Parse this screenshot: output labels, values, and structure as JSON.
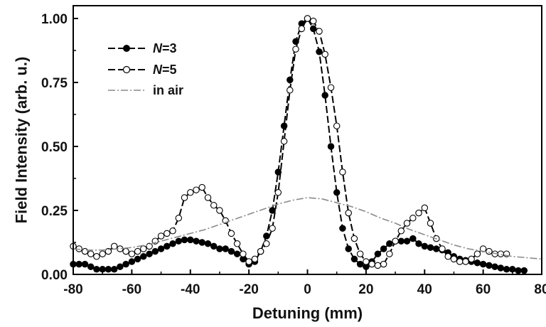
{
  "chart_data": {
    "type": "line",
    "title": "",
    "xlabel": "Detuning (mm)",
    "ylabel": "Field Intensity (arb. u.)",
    "xlim": [
      -80,
      80
    ],
    "ylim": [
      0,
      1.05
    ],
    "xticks": [
      -80,
      -60,
      -40,
      -20,
      0,
      20,
      40,
      60,
      80
    ],
    "yticks": [
      0.0,
      0.25,
      0.5,
      0.75,
      1.0
    ],
    "xtick_labels": [
      "-80",
      "-60",
      "-40",
      "-20",
      "0",
      "20",
      "40",
      "60",
      "80"
    ],
    "ytick_labels": [
      "0.00",
      "0.25",
      "0.50",
      "0.75",
      "1.00"
    ],
    "grid": false,
    "legend_position": "top-left",
    "series": [
      {
        "name_prefix": "N",
        "name_suffix": "=3",
        "marker": "filled-circle",
        "color": "#000000",
        "x": [
          -80,
          -78,
          -76,
          -74,
          -72,
          -70,
          -68,
          -66,
          -64,
          -62,
          -60,
          -58,
          -56,
          -54,
          -52,
          -50,
          -48,
          -46,
          -44,
          -42,
          -40,
          -38,
          -36,
          -34,
          -32,
          -30,
          -28,
          -26,
          -24,
          -22,
          -20,
          -18,
          -16,
          -14,
          -12,
          -10,
          -8,
          -6,
          -4,
          -2,
          0,
          2,
          4,
          6,
          8,
          10,
          12,
          14,
          16,
          18,
          20,
          22,
          24,
          26,
          28,
          30,
          32,
          34,
          36,
          38,
          40,
          42,
          44,
          46,
          48,
          50,
          52,
          54,
          56,
          58,
          60,
          62,
          64,
          66,
          68,
          70,
          72,
          74
        ],
        "y": [
          0.04,
          0.04,
          0.04,
          0.03,
          0.02,
          0.02,
          0.02,
          0.02,
          0.03,
          0.04,
          0.05,
          0.06,
          0.07,
          0.08,
          0.09,
          0.1,
          0.11,
          0.12,
          0.13,
          0.135,
          0.135,
          0.13,
          0.125,
          0.12,
          0.11,
          0.1,
          0.1,
          0.09,
          0.08,
          0.06,
          0.04,
          0.05,
          0.09,
          0.15,
          0.25,
          0.4,
          0.58,
          0.76,
          0.91,
          0.98,
          1.0,
          0.96,
          0.87,
          0.7,
          0.5,
          0.32,
          0.18,
          0.1,
          0.06,
          0.04,
          0.03,
          0.05,
          0.08,
          0.1,
          0.12,
          0.13,
          0.13,
          0.13,
          0.14,
          0.12,
          0.11,
          0.105,
          0.1,
          0.095,
          0.085,
          0.07,
          0.06,
          0.055,
          0.05,
          0.045,
          0.04,
          0.035,
          0.03,
          0.025,
          0.02,
          0.02,
          0.015,
          0.015
        ]
      },
      {
        "name_prefix": "N",
        "name_suffix": "=5",
        "marker": "open-circle",
        "color": "#000000",
        "x": [
          -80,
          -78,
          -76,
          -74,
          -72,
          -70,
          -68,
          -66,
          -64,
          -62,
          -60,
          -58,
          -56,
          -54,
          -52,
          -50,
          -48,
          -46,
          -44,
          -42,
          -40,
          -38,
          -36,
          -34,
          -32,
          -30,
          -28,
          -26,
          -24,
          -22,
          -20,
          -18,
          -16,
          -14,
          -12,
          -10,
          -8,
          -6,
          -4,
          -2,
          0,
          2,
          4,
          6,
          8,
          10,
          12,
          14,
          16,
          18,
          20,
          22,
          24,
          26,
          28,
          30,
          32,
          34,
          36,
          38,
          40,
          42,
          44,
          46,
          48,
          50,
          52,
          54,
          56,
          58,
          60,
          62,
          64,
          66,
          68
        ],
        "y": [
          0.11,
          0.1,
          0.09,
          0.08,
          0.07,
          0.08,
          0.09,
          0.11,
          0.1,
          0.09,
          0.08,
          0.09,
          0.1,
          0.11,
          0.13,
          0.15,
          0.16,
          0.17,
          0.22,
          0.3,
          0.32,
          0.33,
          0.34,
          0.3,
          0.27,
          0.25,
          0.21,
          0.16,
          0.12,
          0.08,
          0.05,
          0.06,
          0.09,
          0.12,
          0.18,
          0.32,
          0.52,
          0.72,
          0.88,
          0.96,
          1.0,
          0.99,
          0.95,
          0.86,
          0.73,
          0.58,
          0.4,
          0.24,
          0.14,
          0.08,
          0.05,
          0.04,
          0.035,
          0.04,
          0.08,
          0.13,
          0.17,
          0.2,
          0.22,
          0.24,
          0.26,
          0.2,
          0.14,
          0.1,
          0.07,
          0.06,
          0.05,
          0.05,
          0.06,
          0.08,
          0.1,
          0.09,
          0.08,
          0.08,
          0.08
        ]
      },
      {
        "name": "in air",
        "marker": "none",
        "line_style": "dash-dot",
        "color": "#8a8a8a",
        "x": [
          -80,
          -75,
          -70,
          -65,
          -60,
          -55,
          -50,
          -45,
          -40,
          -35,
          -30,
          -25,
          -20,
          -15,
          -10,
          -5,
          0,
          5,
          10,
          15,
          20,
          25,
          30,
          35,
          40,
          45,
          50,
          55,
          60,
          65,
          70,
          75,
          80
        ],
        "y": [
          0.1,
          0.095,
          0.095,
          0.1,
          0.105,
          0.115,
          0.13,
          0.145,
          0.16,
          0.175,
          0.195,
          0.215,
          0.235,
          0.255,
          0.275,
          0.29,
          0.3,
          0.295,
          0.28,
          0.265,
          0.245,
          0.22,
          0.2,
          0.175,
          0.155,
          0.135,
          0.115,
          0.1,
          0.09,
          0.08,
          0.07,
          0.065,
          0.06
        ]
      }
    ]
  }
}
